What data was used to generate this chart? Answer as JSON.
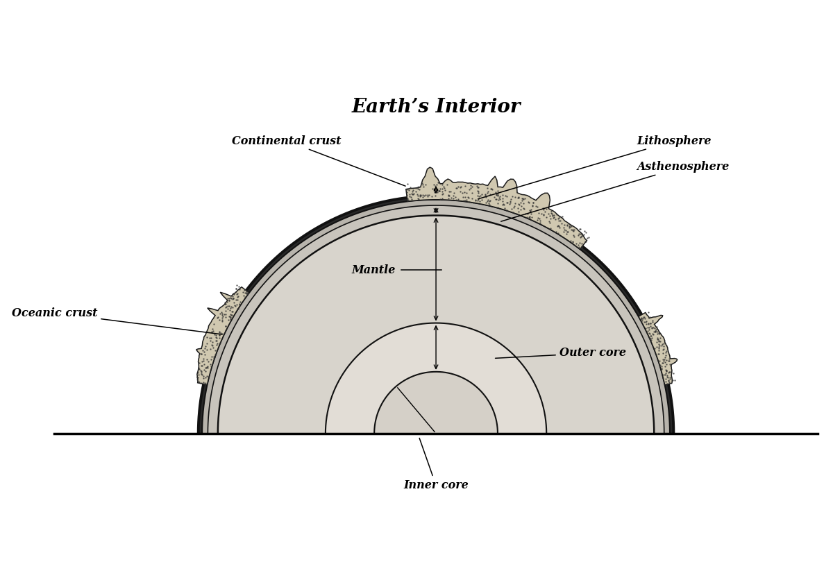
{
  "title": "Earth’s Interior",
  "bg_color": "#ffffff",
  "radii": {
    "inner_core": 0.215,
    "outer_core": 0.385,
    "mantle_outer": 0.76,
    "asthenosphere_outer": 0.795,
    "oceanic_crust_outer": 0.815,
    "litho_outer": 0.828
  },
  "colors": {
    "mantle": "#d8d4cc",
    "outer_core": "#e2ddd6",
    "inner_core": "#d5d0c8",
    "asthenosphere": "#c8c4bc",
    "oceanic_crust_fill": "#b8b4ac",
    "litho_fill": "#282828",
    "continental_crust": "#d0c8b0",
    "continental_dots": "#555555"
  },
  "labels": {
    "title": "Earth’s Interior",
    "continental_crust": "Continental crust",
    "oceanic_crust": "Oceanic crust",
    "lithosphere": "Lithosphere",
    "asthenosphere": "Asthenosphere",
    "mantle": "Mantle",
    "outer_core": "Outer core",
    "inner_core": "Inner core"
  },
  "font": {
    "family": "DejaVu Serif",
    "size_label": 11.5,
    "size_title": 20
  }
}
